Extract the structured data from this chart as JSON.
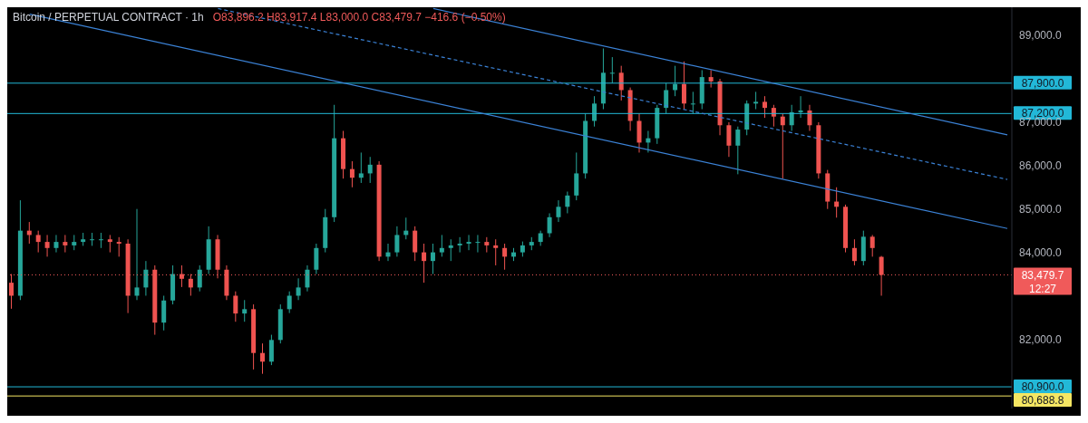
{
  "chart_data": {
    "type": "candlestick",
    "title": "Bitcoin / PERPETUAL CONTRACT · 1h",
    "subtitle": "O83,896.2 H83,917.4 L83,000.0 C83,479.7 −416.6 (−0.50%)",
    "categories": [
      null,
      null,
      null,
      null,
      null,
      null,
      null,
      null,
      null,
      null,
      null,
      null,
      null,
      null,
      null,
      null,
      null,
      null,
      null,
      null,
      null,
      null,
      null,
      null,
      null,
      null,
      null,
      null,
      null,
      null,
      null,
      null,
      null,
      null,
      null,
      null,
      null,
      null,
      null,
      null,
      null,
      null,
      null,
      null,
      null,
      null,
      null,
      null,
      null,
      null,
      null,
      null,
      null,
      null,
      null,
      null,
      null,
      null,
      null,
      null,
      null,
      null,
      null,
      null,
      null,
      null,
      null,
      null,
      null,
      null,
      null,
      null,
      null,
      null,
      null,
      null,
      null,
      null,
      null,
      null,
      null,
      null,
      null,
      null,
      null,
      null,
      null,
      null,
      null,
      null,
      null,
      null,
      null,
      null,
      null,
      null,
      null,
      null,
      null,
      null,
      null,
      null,
      null,
      null,
      null,
      null,
      null,
      null,
      null,
      null,
      null,
      null
    ],
    "colors": [
      "#ef5350",
      "#26a69a",
      "#ef5350",
      "#ef5350",
      "#ef5350",
      "#26a69a",
      "#ef5350",
      "#26a69a",
      "#26a69a",
      "#26a69a",
      "#26a69a",
      "#ef5350",
      "#ef5350",
      "#ef5350",
      "#26a69a",
      "#26a69a",
      "#ef5350",
      "#26a69a",
      "#26a69a",
      "#ef5350",
      "#ef5350",
      "#26a69a",
      "#26a69a",
      "#ef5350",
      "#ef5350",
      "#ef5350",
      "#26a69a",
      "#ef5350",
      "#ef5350",
      "#26a69a",
      "#26a69a",
      "#26a69a",
      "#26a69a",
      "#26a69a",
      "#26a69a",
      "#26a69a",
      "#26a69a",
      "#ef5350",
      "#ef5350",
      "#26a69a",
      "#26a69a",
      "#ef5350",
      "#26a69a",
      "#26a69a",
      "#26a69a",
      "#ef5350",
      "#ef5350",
      "#26a69a",
      "#26a69a",
      "#26a69a",
      "#26a69a",
      "#26a69a",
      "#26a69a",
      "#ef5350",
      "#ef5350",
      "#ef5350",
      "#26a69a",
      "#26a69a",
      "#26a69a",
      "#26a69a",
      "#26a69a",
      "#26a69a",
      "#26a69a",
      "#26a69a",
      "#26a69a",
      "#26a69a",
      "#26a69a",
      "#26a69a",
      "#ef5350",
      "#ef5350",
      "#ef5350",
      "#26a69a",
      "#26a69a",
      "#26a69a",
      "#26a69a",
      "#ef5350",
      "#26a69a",
      "#26a69a",
      "#ef5350",
      "#ef5350",
      "#ef5350",
      "#26a69a",
      "#26a69a",
      "#26a69a",
      "#ef5350",
      "#ef5350",
      "#ef5350",
      "#26a69a",
      "#26a69a",
      "#ef5350",
      "#ef5350",
      "#ef5350",
      "#ef5350",
      "#ef5350",
      "#ef5350",
      "#26a69a",
      "#ef5350",
      "#ef5350",
      null,
      null,
      null,
      null,
      null,
      null,
      null,
      null,
      null,
      null,
      null,
      null,
      null,
      null
    ],
    "ohlc": [
      [
        83300,
        83500,
        82700,
        83000
      ],
      [
        83000,
        85200,
        82900,
        84500
      ],
      [
        84500,
        84700,
        84200,
        84400
      ],
      [
        84400,
        84500,
        84000,
        84240
      ],
      [
        84240,
        84400,
        83900,
        84100
      ],
      [
        84100,
        84400,
        84000,
        84240
      ],
      [
        84240,
        84400,
        84000,
        84160
      ],
      [
        84160,
        84400,
        84050,
        84240
      ],
      [
        84240,
        84450,
        84150,
        84300
      ],
      [
        84300,
        84450,
        84150,
        84300
      ],
      [
        84300,
        84450,
        84100,
        84300
      ],
      [
        84300,
        84400,
        84000,
        84240
      ],
      [
        84240,
        84350,
        83900,
        84200
      ],
      [
        84200,
        84300,
        82600,
        83000
      ],
      [
        83000,
        85000,
        82900,
        83190
      ],
      [
        83190,
        83800,
        83000,
        83600
      ],
      [
        83600,
        83700,
        82100,
        82380
      ],
      [
        82380,
        83000,
        82200,
        82890
      ],
      [
        82890,
        83700,
        82800,
        83500
      ],
      [
        83500,
        83700,
        83200,
        83390
      ],
      [
        83390,
        83500,
        83000,
        83190
      ],
      [
        83190,
        83700,
        83100,
        83600
      ],
      [
        83600,
        84600,
        83500,
        84300
      ],
      [
        84300,
        84400,
        83400,
        83600
      ],
      [
        83600,
        83700,
        82900,
        83000
      ],
      [
        83000,
        83100,
        82400,
        82590
      ],
      [
        82590,
        82900,
        82400,
        82690
      ],
      [
        82690,
        82800,
        81300,
        81680
      ],
      [
        81680,
        81900,
        81200,
        81480
      ],
      [
        81480,
        82100,
        81400,
        81980
      ],
      [
        81980,
        82800,
        81900,
        82690
      ],
      [
        82690,
        83100,
        82600,
        83000
      ],
      [
        83000,
        83400,
        82900,
        83190
      ],
      [
        83190,
        83700,
        83100,
        83600
      ],
      [
        83600,
        84200,
        83500,
        84100
      ],
      [
        84100,
        85000,
        84000,
        84810
      ],
      [
        84810,
        87400,
        84700,
        86630
      ],
      [
        86630,
        86800,
        85700,
        85920
      ],
      [
        85920,
        86100,
        85500,
        85720
      ],
      [
        85720,
        86300,
        85600,
        85820
      ],
      [
        85820,
        86200,
        85600,
        86020
      ],
      [
        86020,
        86100,
        83800,
        83900
      ],
      [
        83900,
        84200,
        83800,
        84000
      ],
      [
        84000,
        84600,
        83900,
        84400
      ],
      [
        84400,
        84800,
        84300,
        84500
      ],
      [
        84500,
        84600,
        83800,
        84000
      ],
      [
        84000,
        84200,
        83300,
        83800
      ],
      [
        83800,
        84200,
        83500,
        84000
      ],
      [
        84000,
        84400,
        83900,
        84100
      ],
      [
        84100,
        84300,
        83800,
        84160
      ],
      [
        84160,
        84350,
        84000,
        84200
      ],
      [
        84200,
        84400,
        84050,
        84240
      ],
      [
        84240,
        84400,
        84000,
        84240
      ],
      [
        84240,
        84350,
        84000,
        84160
      ],
      [
        84160,
        84300,
        83700,
        84100
      ],
      [
        84100,
        84200,
        83600,
        83900
      ],
      [
        83900,
        84100,
        83800,
        84000
      ],
      [
        84000,
        84250,
        83900,
        84160
      ],
      [
        84160,
        84350,
        84050,
        84240
      ],
      [
        84240,
        84500,
        84150,
        84440
      ],
      [
        84440,
        84900,
        84350,
        84810
      ],
      [
        84810,
        85200,
        84700,
        85050
      ],
      [
        85050,
        85400,
        84900,
        85310
      ],
      [
        85310,
        86300,
        85200,
        85820
      ],
      [
        85820,
        87200,
        85700,
        87030
      ],
      [
        87030,
        87600,
        86900,
        87430
      ],
      [
        87430,
        88700,
        87300,
        88140
      ],
      [
        88140,
        88500,
        87900,
        88140
      ],
      [
        88140,
        88300,
        87500,
        87740
      ],
      [
        87740,
        87800,
        86800,
        87030
      ],
      [
        87030,
        87200,
        86300,
        86530
      ],
      [
        86530,
        86800,
        86300,
        86630
      ],
      [
        86630,
        87400,
        86500,
        87330
      ],
      [
        87330,
        87900,
        87200,
        87740
      ],
      [
        87740,
        88300,
        87600,
        87880
      ],
      [
        87880,
        88400,
        87300,
        87430
      ],
      [
        87430,
        87700,
        87200,
        87430
      ],
      [
        87430,
        88200,
        87300,
        88040
      ],
      [
        88040,
        88200,
        87800,
        87940
      ],
      [
        87940,
        88000,
        86700,
        86930
      ],
      [
        86930,
        87000,
        86200,
        86460
      ],
      [
        86460,
        86900,
        85800,
        86830
      ],
      [
        86830,
        87500,
        86700,
        87430
      ],
      [
        87430,
        87700,
        87300,
        87470
      ],
      [
        87470,
        87600,
        87100,
        87330
      ],
      [
        87330,
        87400,
        86900,
        87130
      ],
      [
        87130,
        87200,
        85700,
        86930
      ],
      [
        86930,
        87400,
        86800,
        87230
      ],
      [
        87230,
        87600,
        87100,
        87270
      ],
      [
        87270,
        87400,
        86800,
        86930
      ],
      [
        86930,
        87000,
        85700,
        85820
      ],
      [
        85820,
        85900,
        85000,
        85170
      ],
      [
        85170,
        85500,
        84800,
        85050
      ],
      [
        85050,
        85100,
        84000,
        84100
      ],
      [
        84100,
        84300,
        83700,
        83800
      ],
      [
        83800,
        84500,
        83700,
        84360
      ],
      [
        84360,
        84400,
        83900,
        84100
      ],
      [
        83896.2,
        83917.4,
        83000.0,
        83479.7
      ],
      null,
      null,
      null,
      null,
      null,
      null,
      null,
      null,
      null,
      null,
      null,
      null,
      null,
      null
    ],
    "series": [
      {
        "type": "line",
        "color": "#3b82d6",
        "line_style": "solid",
        "values": [
          null,
          null,
          89490,
          null,
          null,
          null,
          null,
          null,
          null,
          null,
          null,
          null,
          null,
          null,
          null,
          null,
          null,
          null,
          null,
          null,
          null,
          null,
          null,
          null,
          null,
          null,
          null,
          null,
          null,
          null,
          null,
          null,
          null,
          null,
          null,
          null,
          null,
          null,
          null,
          null,
          null,
          null,
          null,
          null,
          null,
          null,
          null,
          null,
          null,
          null,
          null,
          null,
          null,
          null,
          null,
          null,
          null,
          null,
          null,
          null,
          null,
          null,
          null,
          null,
          null,
          null,
          null,
          null,
          null,
          null,
          null,
          null,
          null,
          null,
          null,
          null,
          null,
          null,
          null,
          null,
          null,
          null,
          null,
          null,
          null,
          null,
          null,
          null,
          null,
          null,
          null,
          null,
          null,
          null,
          null,
          null,
          null,
          null,
          null,
          null,
          null,
          null,
          null,
          null,
          null,
          null,
          null,
          null,
          null,
          null,
          null,
          84550
        ]
      },
      {
        "type": "line",
        "color": "#3b82d6",
        "line_style": "dashed",
        "values": [
          null,
          null,
          null,
          null,
          null,
          null,
          null,
          null,
          null,
          null,
          null,
          null,
          null,
          null,
          null,
          null,
          null,
          null,
          null,
          null,
          null,
          null,
          null,
          89620,
          null,
          null,
          null,
          null,
          null,
          null,
          null,
          null,
          null,
          null,
          null,
          null,
          null,
          null,
          null,
          null,
          null,
          null,
          null,
          null,
          null,
          null,
          null,
          null,
          null,
          null,
          null,
          null,
          null,
          null,
          null,
          null,
          null,
          null,
          null,
          null,
          null,
          null,
          null,
          null,
          null,
          null,
          null,
          null,
          null,
          null,
          null,
          null,
          null,
          null,
          null,
          null,
          null,
          null,
          null,
          null,
          null,
          null,
          null,
          null,
          null,
          null,
          null,
          null,
          null,
          null,
          null,
          null,
          null,
          null,
          null,
          null,
          null,
          null,
          null,
          null,
          null,
          null,
          null,
          null,
          null,
          null,
          null,
          null,
          null,
          null,
          null,
          85680
        ]
      },
      {
        "type": "line",
        "color": "#3b82d6",
        "line_style": "solid",
        "values": [
          null,
          null,
          null,
          null,
          null,
          null,
          null,
          null,
          null,
          null,
          null,
          null,
          null,
          null,
          null,
          null,
          null,
          null,
          null,
          null,
          null,
          null,
          null,
          null,
          null,
          null,
          null,
          null,
          null,
          null,
          null,
          null,
          null,
          null,
          null,
          null,
          null,
          null,
          null,
          null,
          null,
          null,
          null,
          null,
          null,
          null,
          null,
          89620,
          null,
          null,
          null,
          null,
          null,
          null,
          null,
          null,
          null,
          null,
          null,
          null,
          null,
          null,
          null,
          null,
          null,
          null,
          null,
          null,
          null,
          null,
          null,
          null,
          null,
          null,
          null,
          null,
          null,
          null,
          null,
          null,
          null,
          null,
          null,
          null,
          null,
          null,
          null,
          null,
          null,
          null,
          null,
          null,
          null,
          null,
          null,
          null,
          null,
          null,
          null,
          null,
          null,
          null,
          null,
          null,
          null,
          null,
          null,
          null,
          null,
          null,
          null,
          86710
        ]
      }
    ],
    "ylim": [
      80400,
      89650
    ],
    "yticks": [
      {
        "value": 82000,
        "label": "82,000.0"
      },
      {
        "value": 84000,
        "label": "84,000.0"
      },
      {
        "value": 85000,
        "label": "85,000.0"
      },
      {
        "value": 86000,
        "label": "86,000.0"
      },
      {
        "value": 87000,
        "label": "87,000.0"
      },
      {
        "value": 89000,
        "label": "89,000.0"
      }
    ],
    "ref_lines": [
      {
        "axis": "y",
        "value": 87900,
        "label": "87,900.0",
        "color": "#22b8d8",
        "line_style": "solid"
      },
      {
        "axis": "y",
        "value": 87200,
        "label": "87,200.0",
        "color": "#22b8d8",
        "line_style": "solid"
      },
      {
        "axis": "y",
        "value": 80900,
        "label": "80,900.0",
        "color": "#22b8d8",
        "line_style": "solid"
      },
      {
        "axis": "y",
        "value": 80688.8,
        "label": "80,688.8",
        "color": "#f5e663",
        "line_style": "solid"
      },
      {
        "axis": "y",
        "value": 83479.7,
        "label": "83,479.7\n12:27",
        "color": "#f05a5a",
        "line_style": "dotted"
      }
    ],
    "grid": false,
    "marker": "none",
    "tick_labels": "y"
  }
}
